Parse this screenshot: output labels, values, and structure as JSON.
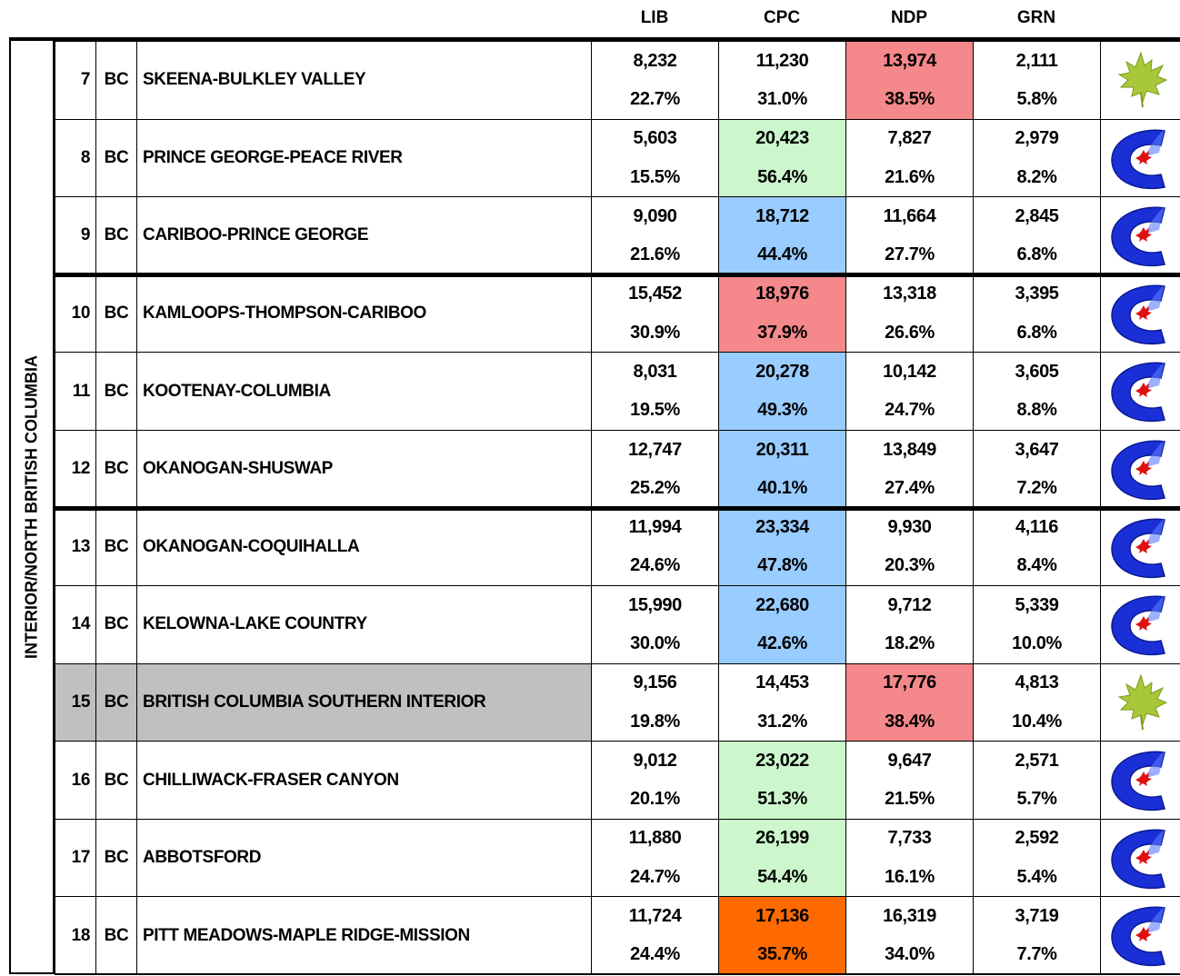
{
  "header": {
    "columns": [
      "LIB",
      "CPC",
      "NDP",
      "GRN"
    ]
  },
  "region": "INTERIOR/NORTH BRITISH COLUMBIA",
  "rows": [
    {
      "number": "7",
      "province": "BC",
      "name": "SKEENA-BULKLEY VALLEY",
      "votes": [
        "8,232",
        "11,230",
        "13,974",
        "2,111"
      ],
      "percents": [
        "22.7%",
        "31.0%",
        "38.5%",
        "5.8%"
      ],
      "highlight": {
        "column": 2,
        "color": "#f4888a"
      }
    },
    {
      "number": "8",
      "province": "BC",
      "name": "PRINCE GEORGE-PEACE RIVER",
      "votes": [
        "5,603",
        "20,423",
        "7,827",
        "2,979"
      ],
      "percents": [
        "15.5%",
        "56.4%",
        "21.6%",
        "8.2%"
      ],
      "highlight": {
        "column": 1,
        "color": "#ccf7cc"
      }
    },
    {
      "number": "9",
      "province": "BC",
      "name": "CARIBOO-PRINCE GEORGE",
      "votes": [
        "9,090",
        "18,712",
        "11,664",
        "2,845"
      ],
      "percents": [
        "21.6%",
        "44.4%",
        "27.7%",
        "6.8%"
      ],
      "highlight": {
        "column": 1,
        "color": "#99ccff"
      }
    },
    {
      "number": "10",
      "province": "BC",
      "name": "KAMLOOPS-THOMPSON-CARIBOO",
      "votes": [
        "15,452",
        "18,976",
        "13,318",
        "3,395"
      ],
      "percents": [
        "30.9%",
        "37.9%",
        "26.6%",
        "6.8%"
      ],
      "highlight": {
        "column": 1,
        "color": "#f4888a"
      }
    },
    {
      "number": "11",
      "province": "BC",
      "name": "KOOTENAY-COLUMBIA",
      "votes": [
        "8,031",
        "20,278",
        "10,142",
        "3,605"
      ],
      "percents": [
        "19.5%",
        "49.3%",
        "24.7%",
        "8.8%"
      ],
      "highlight": {
        "column": 1,
        "color": "#99ccff"
      }
    },
    {
      "number": "12",
      "province": "BC",
      "name": "OKANOGAN-SHUSWAP",
      "votes": [
        "12,747",
        "20,311",
        "13,849",
        "3,647"
      ],
      "percents": [
        "25.2%",
        "40.1%",
        "27.4%",
        "7.2%"
      ],
      "highlight": {
        "column": 1,
        "color": "#99ccff"
      }
    },
    {
      "number": "13",
      "province": "BC",
      "name": "OKANOGAN-COQUIHALLA",
      "votes": [
        "11,994",
        "23,334",
        "9,930",
        "4,116"
      ],
      "percents": [
        "24.6%",
        "47.8%",
        "20.3%",
        "8.4%"
      ],
      "highlight": {
        "column": 1,
        "color": "#99ccff"
      }
    },
    {
      "number": "14",
      "province": "BC",
      "name": "KELOWNA-LAKE COUNTRY",
      "votes": [
        "15,990",
        "22,680",
        "9,712",
        "5,339"
      ],
      "percents": [
        "30.0%",
        "42.6%",
        "18.2%",
        "10.0%"
      ],
      "highlight": {
        "column": 1,
        "color": "#99ccff"
      }
    },
    {
      "number": "15",
      "province": "BC",
      "name": "BRITISH COLUMBIA SOUTHERN INTERIOR",
      "votes": [
        "9,156",
        "14,453",
        "17,776",
        "4,813"
      ],
      "percents": [
        "19.8%",
        "31.2%",
        "38.4%",
        "10.4%"
      ],
      "highlight": {
        "column": 2,
        "color": "#f4888a"
      },
      "shaded": "#c0c0c0"
    },
    {
      "number": "16",
      "province": "BC",
      "name": "CHILLIWACK-FRASER CANYON",
      "votes": [
        "9,012",
        "23,022",
        "9,647",
        "2,571"
      ],
      "percents": [
        "20.1%",
        "51.3%",
        "21.5%",
        "5.7%"
      ],
      "highlight": {
        "column": 1,
        "color": "#ccf7cc"
      }
    },
    {
      "number": "17",
      "province": "BC",
      "name": "ABBOTSFORD",
      "votes": [
        "11,880",
        "26,199",
        "7,733",
        "2,592"
      ],
      "percents": [
        "24.7%",
        "54.4%",
        "16.1%",
        "5.4%"
      ],
      "highlight": {
        "column": 1,
        "color": "#ccf7cc"
      }
    },
    {
      "number": "18",
      "province": "BC",
      "name": "PITT MEADOWS-MAPLE RIDGE-MISSION",
      "votes": [
        "11,724",
        "17,136",
        "16,319",
        "3,719"
      ],
      "percents": [
        "24.4%",
        "35.7%",
        "34.0%",
        "7.7%"
      ],
      "highlight": {
        "column": 1,
        "color": "#ff6a00"
      }
    }
  ]
}
